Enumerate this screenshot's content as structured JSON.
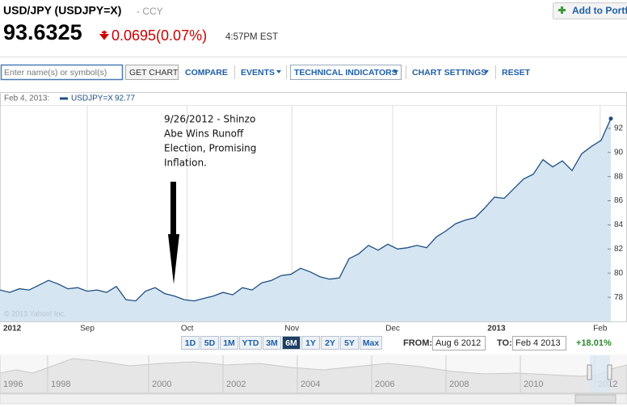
{
  "header": {
    "title": "USD/JPY (USDJPY=X)",
    "exchange": "- CCY",
    "price": "93.6325",
    "change": "0.0695(0.07%)",
    "time": "4:57PM EST",
    "add_button": "Add to Portf"
  },
  "toolbar": {
    "search_placeholder": "Enter name(s) or symbol(s)",
    "get_chart": "GET CHART",
    "compare": "COMPARE",
    "events": "EVENTS",
    "technical_indicators": "TECHNICAL INDICATORS",
    "chart_settings": "CHART SETTINGS",
    "reset": "RESET"
  },
  "chart_data": {
    "type": "line",
    "legend_date": "Feb 4, 2013:",
    "legend_value": "92.77",
    "copyright": "© 2013 Yahoo! Inc.",
    "annotation": [
      "9/26/2012 - Shinzo",
      "Abe Wins Runoff",
      "Election, Promising",
      "Inflation."
    ],
    "series": [
      {
        "name": "USDJPY=X",
        "color": "#1f4f82",
        "values": [
          78.6,
          78.4,
          78.7,
          78.6,
          79.0,
          79.4,
          79.1,
          78.7,
          78.8,
          78.5,
          78.6,
          78.4,
          78.9,
          77.8,
          77.7,
          78.5,
          78.8,
          78.3,
          78.1,
          77.8,
          77.7,
          77.9,
          78.1,
          78.4,
          78.2,
          78.8,
          78.6,
          79.2,
          79.4,
          79.8,
          79.9,
          80.4,
          80.1,
          79.7,
          79.5,
          79.6,
          81.2,
          81.6,
          82.3,
          81.9,
          82.4,
          82.0,
          82.1,
          82.3,
          82.1,
          83.0,
          83.5,
          84.1,
          84.4,
          84.6,
          85.4,
          86.3,
          86.2,
          87.0,
          87.8,
          88.2,
          89.4,
          88.8,
          89.3,
          88.5,
          89.9,
          90.5,
          91.0,
          92.8
        ]
      }
    ],
    "xlim": [
      0,
      63
    ],
    "xticks": [
      {
        "value": 0,
        "label": "2012"
      },
      {
        "value": 9,
        "label": "Sep"
      },
      {
        "value": 19.3,
        "label": "Oct"
      },
      {
        "value": 30.1,
        "label": "Nov"
      },
      {
        "value": 40.5,
        "label": "Dec"
      },
      {
        "value": 51.2,
        "label": "2013"
      },
      {
        "value": 61.9,
        "label": "Feb"
      }
    ],
    "ylim": [
      76,
      94
    ],
    "yticks": [
      78,
      80,
      82,
      84,
      86,
      88,
      90,
      92
    ],
    "grid": true,
    "fill_color": "#d5e5f1"
  },
  "range": {
    "buttons": [
      "1D",
      "5D",
      "1M",
      "YTD",
      "3M",
      "6M",
      "1Y",
      "2Y",
      "5Y",
      "Max"
    ],
    "selected": "6M",
    "from_label": "FROM:",
    "from": "Aug 6 2012",
    "to_label": "TO:",
    "to": "Feb 4 2013",
    "change": "+18.01%"
  },
  "navigator": {
    "years": [
      "1996",
      "1998",
      "2000",
      "2002",
      "2004",
      "2006",
      "2008",
      "2010",
      "2012"
    ]
  }
}
